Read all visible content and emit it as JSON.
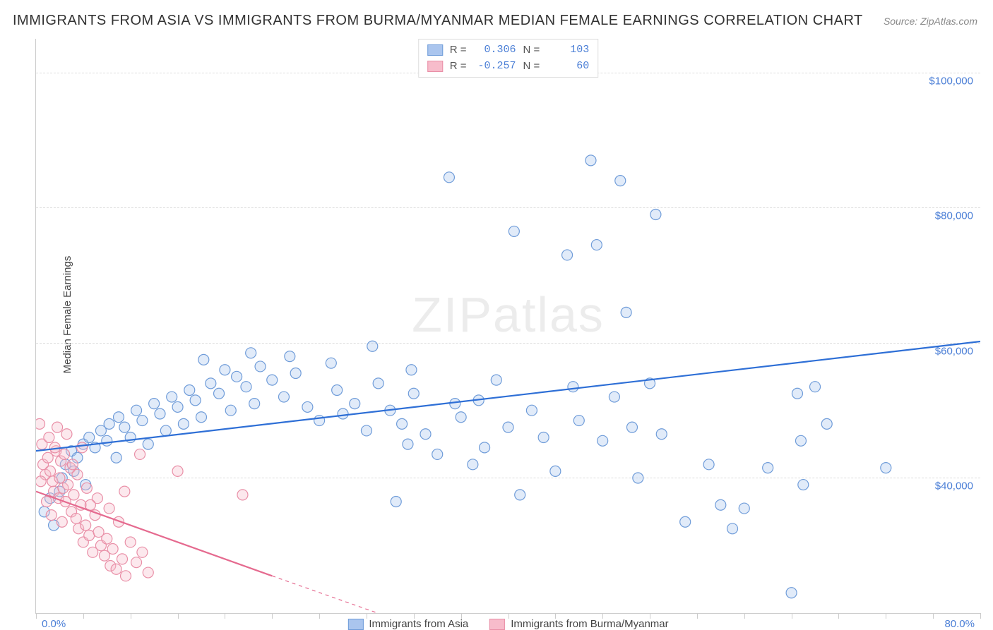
{
  "title": "IMMIGRANTS FROM ASIA VS IMMIGRANTS FROM BURMA/MYANMAR MEDIAN FEMALE EARNINGS CORRELATION CHART",
  "source": "Source: ZipAtlas.com",
  "watermark": "ZIPatlas",
  "ylabel": "Median Female Earnings",
  "chart": {
    "type": "scatter",
    "xlim": [
      0,
      80
    ],
    "ylim": [
      20000,
      105000
    ],
    "x_tick_minor_step": 4,
    "y_ticks": [
      40000,
      60000,
      80000,
      100000
    ],
    "y_tick_labels": [
      "$40,000",
      "$60,000",
      "$80,000",
      "$100,000"
    ],
    "x_min_label": "0.0%",
    "x_max_label": "80.0%",
    "grid_color": "#dddddd",
    "axis_color": "#cccccc",
    "background_color": "#ffffff",
    "label_font_size": 15,
    "title_font_size": 20,
    "marker_radius": 7.5,
    "marker_fill_opacity": 0.35,
    "trend_line_width": 2.2
  },
  "series": [
    {
      "name": "Immigrants from Asia",
      "fill_color": "#aac5ee",
      "stroke_color": "#6f9cd9",
      "line_color": "#2e6fd6",
      "R": "0.306",
      "N": "103",
      "trend": {
        "x1": 0,
        "y1": 44000,
        "x2": 80,
        "y2": 60200
      },
      "points": [
        [
          0.7,
          35000
        ],
        [
          1.2,
          37000
        ],
        [
          1.5,
          33000
        ],
        [
          2.0,
          38000
        ],
        [
          2.2,
          40000
        ],
        [
          2.5,
          42000
        ],
        [
          3.0,
          44000
        ],
        [
          3.2,
          41000
        ],
        [
          3.5,
          43000
        ],
        [
          4.0,
          45000
        ],
        [
          4.2,
          39000
        ],
        [
          4.5,
          46000
        ],
        [
          5.0,
          44500
        ],
        [
          5.5,
          47000
        ],
        [
          6.0,
          45500
        ],
        [
          6.2,
          48000
        ],
        [
          6.8,
          43000
        ],
        [
          7.0,
          49000
        ],
        [
          7.5,
          47500
        ],
        [
          8.0,
          46000
        ],
        [
          8.5,
          50000
        ],
        [
          9.0,
          48500
        ],
        [
          9.5,
          45000
        ],
        [
          10.0,
          51000
        ],
        [
          10.5,
          49500
        ],
        [
          11.0,
          47000
        ],
        [
          11.5,
          52000
        ],
        [
          12.0,
          50500
        ],
        [
          12.5,
          48000
        ],
        [
          13.0,
          53000
        ],
        [
          13.5,
          51500
        ],
        [
          14.0,
          49000
        ],
        [
          14.8,
          54000
        ],
        [
          15.5,
          52500
        ],
        [
          16.0,
          56000
        ],
        [
          16.5,
          50000
        ],
        [
          17.0,
          55000
        ],
        [
          17.8,
          53500
        ],
        [
          18.5,
          51000
        ],
        [
          19.0,
          56500
        ],
        [
          20.0,
          54500
        ],
        [
          21.0,
          52000
        ],
        [
          22.0,
          55500
        ],
        [
          23.0,
          50500
        ],
        [
          24.0,
          48500
        ],
        [
          25.0,
          57000
        ],
        [
          25.5,
          53000
        ],
        [
          26.0,
          49500
        ],
        [
          27.0,
          51000
        ],
        [
          28.0,
          47000
        ],
        [
          29.0,
          54000
        ],
        [
          30.0,
          50000
        ],
        [
          30.5,
          36500
        ],
        [
          31.0,
          48000
        ],
        [
          31.5,
          45000
        ],
        [
          32.0,
          52500
        ],
        [
          33.0,
          46500
        ],
        [
          34.0,
          43500
        ],
        [
          35.0,
          84500
        ],
        [
          36.0,
          49000
        ],
        [
          37.0,
          42000
        ],
        [
          37.5,
          51500
        ],
        [
          38.0,
          44500
        ],
        [
          39.0,
          54500
        ],
        [
          40.0,
          47500
        ],
        [
          40.5,
          76500
        ],
        [
          41.0,
          37500
        ],
        [
          42.0,
          50000
        ],
        [
          43.0,
          46000
        ],
        [
          44.0,
          41000
        ],
        [
          45.0,
          73000
        ],
        [
          45.5,
          53500
        ],
        [
          46.0,
          48500
        ],
        [
          47.0,
          87000
        ],
        [
          47.5,
          74500
        ],
        [
          48.0,
          45500
        ],
        [
          49.0,
          52000
        ],
        [
          49.5,
          84000
        ],
        [
          50.0,
          64500
        ],
        [
          50.5,
          47500
        ],
        [
          51.0,
          40000
        ],
        [
          52.0,
          54000
        ],
        [
          52.5,
          79000
        ],
        [
          53.0,
          46500
        ],
        [
          55.0,
          33500
        ],
        [
          57.0,
          42000
        ],
        [
          58.0,
          36000
        ],
        [
          59.0,
          32500
        ],
        [
          60.0,
          35500
        ],
        [
          62.0,
          41500
        ],
        [
          64.0,
          23000
        ],
        [
          64.5,
          52500
        ],
        [
          64.8,
          45500
        ],
        [
          65.0,
          39000
        ],
        [
          66.0,
          53500
        ],
        [
          67.0,
          48000
        ],
        [
          72.0,
          41500
        ],
        [
          28.5,
          59500
        ],
        [
          21.5,
          58000
        ],
        [
          31.8,
          56000
        ],
        [
          35.5,
          51000
        ],
        [
          14.2,
          57500
        ],
        [
          18.2,
          58500
        ]
      ]
    },
    {
      "name": "Immigrants from Burma/Myanmar",
      "fill_color": "#f7bccb",
      "stroke_color": "#e98fa7",
      "line_color": "#e56a8f",
      "R": "-0.257",
      "N": "60",
      "trend": {
        "x1": 0,
        "y1": 38000,
        "x2": 20,
        "y2": 25500
      },
      "trend_dash": {
        "x1": 20,
        "y1": 25500,
        "x2": 33,
        "y2": 17500
      },
      "points": [
        [
          0.3,
          48000
        ],
        [
          0.5,
          45000
        ],
        [
          0.6,
          42000
        ],
        [
          0.8,
          40500
        ],
        [
          1.0,
          43000
        ],
        [
          1.2,
          41000
        ],
        [
          1.4,
          39500
        ],
        [
          1.5,
          38000
        ],
        [
          1.7,
          44000
        ],
        [
          1.9,
          37000
        ],
        [
          2.0,
          40000
        ],
        [
          2.1,
          42500
        ],
        [
          2.3,
          38500
        ],
        [
          2.5,
          36500
        ],
        [
          2.7,
          39000
        ],
        [
          2.9,
          41500
        ],
        [
          3.0,
          35000
        ],
        [
          3.2,
          37500
        ],
        [
          3.4,
          34000
        ],
        [
          3.6,
          32500
        ],
        [
          3.8,
          36000
        ],
        [
          4.0,
          30500
        ],
        [
          4.2,
          33000
        ],
        [
          4.5,
          31500
        ],
        [
          4.8,
          29000
        ],
        [
          5.0,
          34500
        ],
        [
          5.3,
          32000
        ],
        [
          5.5,
          30000
        ],
        [
          5.8,
          28500
        ],
        [
          6.0,
          31000
        ],
        [
          6.3,
          27000
        ],
        [
          6.5,
          29500
        ],
        [
          6.8,
          26500
        ],
        [
          7.0,
          33500
        ],
        [
          7.3,
          28000
        ],
        [
          7.6,
          25500
        ],
        [
          8.0,
          30500
        ],
        [
          8.5,
          27500
        ],
        [
          9.0,
          29000
        ],
        [
          9.5,
          26000
        ],
        [
          1.1,
          46000
        ],
        [
          1.6,
          44500
        ],
        [
          2.4,
          43500
        ],
        [
          3.1,
          42000
        ],
        [
          0.4,
          39500
        ],
        [
          0.9,
          36500
        ],
        [
          1.3,
          34500
        ],
        [
          2.2,
          33500
        ],
        [
          3.5,
          40500
        ],
        [
          4.3,
          38500
        ],
        [
          5.2,
          37000
        ],
        [
          6.2,
          35500
        ],
        [
          3.9,
          44500
        ],
        [
          2.6,
          46500
        ],
        [
          1.8,
          47500
        ],
        [
          8.8,
          43500
        ],
        [
          17.5,
          37500
        ],
        [
          12.0,
          41000
        ],
        [
          4.6,
          36000
        ],
        [
          7.5,
          38000
        ]
      ]
    }
  ],
  "bottom_legend": [
    {
      "label": "Immigrants from Asia",
      "fill": "#aac5ee",
      "stroke": "#6f9cd9"
    },
    {
      "label": "Immigrants from Burma/Myanmar",
      "fill": "#f7bccb",
      "stroke": "#e98fa7"
    }
  ]
}
